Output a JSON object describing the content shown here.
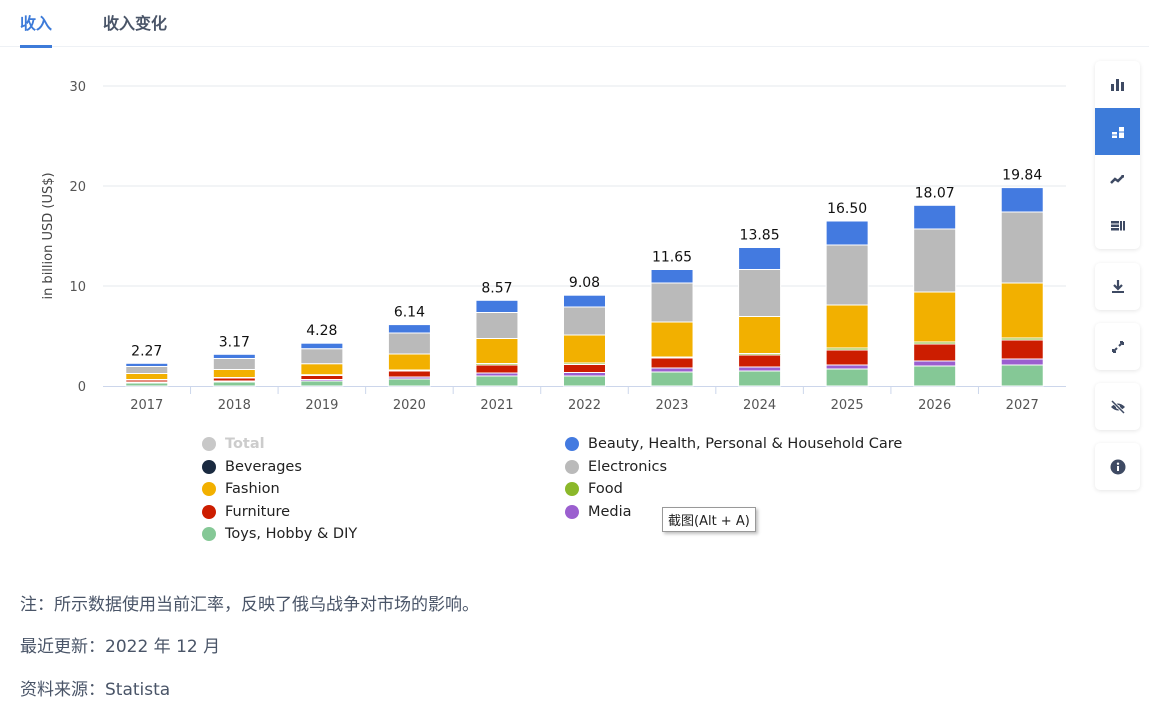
{
  "tabs": [
    {
      "label": "收入",
      "active": true
    },
    {
      "label": "收入变化",
      "active": false
    }
  ],
  "chart_data": {
    "type": "bar",
    "stacked": true,
    "ylabel": "in billion USD (US$)",
    "ylim": [
      0,
      30
    ],
    "yticks": [
      0,
      10,
      20,
      30
    ],
    "grid": true,
    "categories": [
      "2017",
      "2018",
      "2019",
      "2020",
      "2021",
      "2022",
      "2023",
      "2024",
      "2025",
      "2026",
      "2027"
    ],
    "totals": [
      2.27,
      3.17,
      4.28,
      6.14,
      8.57,
      9.08,
      11.65,
      13.85,
      16.5,
      18.07,
      19.84
    ],
    "total_labels": [
      "2.27",
      "3.17",
      "4.28",
      "6.14",
      "8.57",
      "9.08",
      "11.65",
      "13.85",
      "16.50",
      "18.07",
      "19.84"
    ],
    "series": [
      {
        "name": "Toys, Hobby & DIY",
        "color": "#85c896",
        "values": [
          0.3,
          0.4,
          0.5,
          0.7,
          1.0,
          1.0,
          1.4,
          1.5,
          1.7,
          2.0,
          2.1
        ]
      },
      {
        "name": "Media",
        "color": "#9b5fcf",
        "values": [
          0.1,
          0.1,
          0.15,
          0.2,
          0.3,
          0.35,
          0.4,
          0.4,
          0.4,
          0.5,
          0.6
        ]
      },
      {
        "name": "Furniture",
        "color": "#cc1d00",
        "values": [
          0.2,
          0.3,
          0.4,
          0.6,
          0.8,
          0.8,
          1.0,
          1.2,
          1.5,
          1.7,
          1.9
        ]
      },
      {
        "name": "Food",
        "color": "#8bb82a",
        "values": [
          0.05,
          0.05,
          0.08,
          0.1,
          0.15,
          0.15,
          0.1,
          0.15,
          0.2,
          0.2,
          0.2
        ]
      },
      {
        "name": "Beverages",
        "color": "#1a2a40",
        "values": [
          0,
          0,
          0,
          0,
          0,
          0,
          0,
          0,
          0,
          0,
          0
        ]
      },
      {
        "name": "Fashion",
        "color": "#f2b000",
        "values": [
          0.6,
          0.8,
          1.1,
          1.6,
          2.5,
          2.8,
          3.5,
          3.7,
          4.3,
          5.0,
          5.5
        ]
      },
      {
        "name": "Electronics",
        "color": "#bababa",
        "values": [
          0.7,
          1.1,
          1.5,
          2.1,
          2.6,
          2.8,
          3.9,
          4.7,
          6.0,
          6.3,
          7.1
        ]
      },
      {
        "name": "Beauty, Health, Personal & Household Care",
        "color": "#437ae0",
        "values": [
          0.32,
          0.42,
          0.55,
          0.84,
          1.22,
          1.18,
          1.35,
          2.2,
          2.4,
          2.37,
          2.44
        ]
      }
    ],
    "legend": {
      "placement": "bottom",
      "items": [
        {
          "label": "Total",
          "color": "#c8c8c8",
          "hidden": true
        },
        {
          "label": "Beauty, Health, Personal & Household Care",
          "color": "#437ae0"
        },
        {
          "label": "Beverages",
          "color": "#1a2a40"
        },
        {
          "label": "Electronics",
          "color": "#bababa"
        },
        {
          "label": "Fashion",
          "color": "#f2b000"
        },
        {
          "label": "Food",
          "color": "#8bb82a"
        },
        {
          "label": "Furniture",
          "color": "#cc1d00"
        },
        {
          "label": "Media",
          "color": "#9b5fcf"
        },
        {
          "label": "Toys, Hobby & DIY",
          "color": "#85c896"
        }
      ]
    }
  },
  "toolbar": {
    "groups": [
      [
        "bar-chart-icon",
        "stacked-bar-icon",
        "line-chart-icon",
        "table-icon"
      ],
      [
        "download-icon"
      ],
      [
        "expand-icon"
      ],
      [
        "hide-icon"
      ],
      [
        "info-icon"
      ]
    ],
    "active": "stacked-bar-icon",
    "accent": "#3d7bd9"
  },
  "tooltip": "截图(Alt + A)",
  "notes": {
    "note": "注：所示数据使用当前汇率，反映了俄乌战争对市场的影响。",
    "updated": "最近更新：2022 年 12 月",
    "source": "资料来源：Statista"
  }
}
